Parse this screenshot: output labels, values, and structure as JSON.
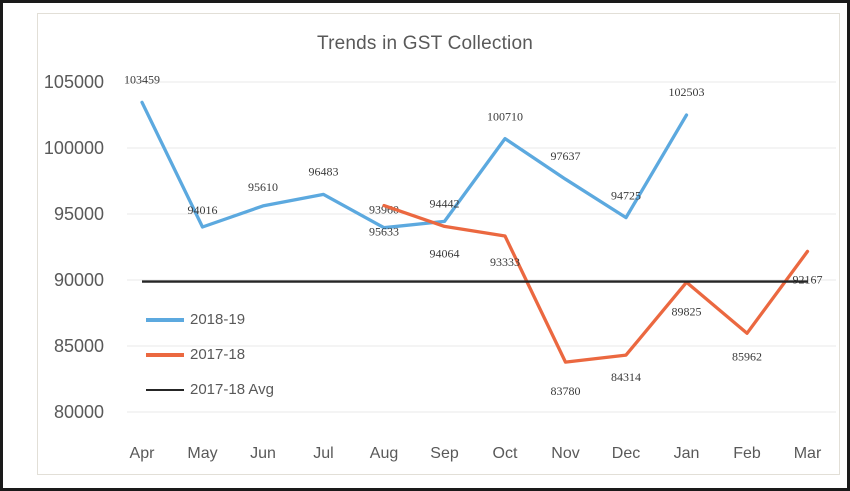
{
  "chart_data": {
    "type": "line",
    "title": "Trends in GST Collection",
    "categories": [
      "Apr",
      "May",
      "Jun",
      "Jul",
      "Aug",
      "Sep",
      "Oct",
      "Nov",
      "Dec",
      "Jan",
      "Feb",
      "Mar"
    ],
    "series": [
      {
        "name": "2018-19",
        "color": "#5CA9DF",
        "values": [
          103459,
          94016,
          95610,
          96483,
          93960,
          94442,
          100710,
          97637,
          94725,
          102503,
          null,
          null
        ]
      },
      {
        "name": "2017-18",
        "color": "#EB6840",
        "values": [
          null,
          null,
          null,
          null,
          95633,
          94064,
          93333,
          83780,
          84314,
          89825,
          85962,
          92167
        ]
      },
      {
        "name": "2017-18 Avg",
        "color": "#262626",
        "style": "avg-line",
        "value": 89885
      }
    ],
    "ylim": [
      80000,
      105000
    ],
    "yticks": [
      105000,
      100000,
      95000,
      90000,
      85000,
      80000
    ],
    "ytick_step": 5000,
    "grid": "horizontal",
    "data_labels": true,
    "legend_position": "middle-left"
  }
}
